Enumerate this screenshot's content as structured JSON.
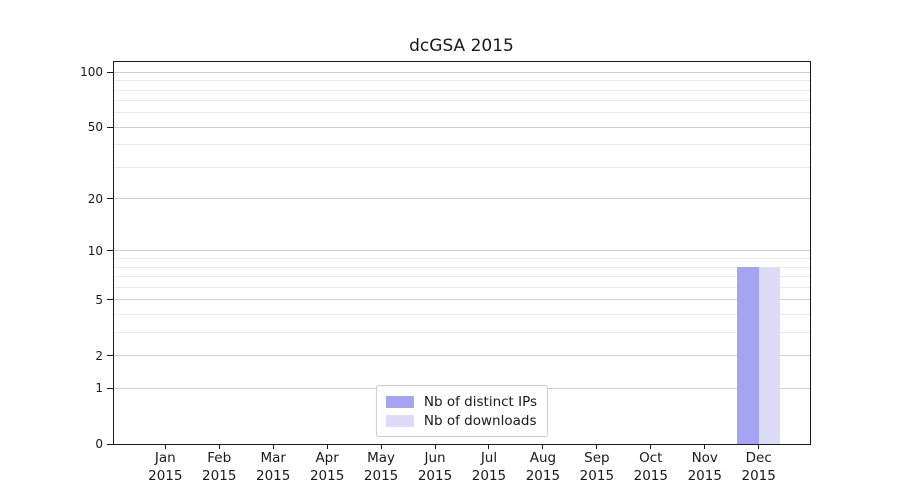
{
  "chart_data": {
    "type": "bar",
    "title": "dcGSA 2015",
    "categories": [
      "Jan",
      "Feb",
      "Mar",
      "Apr",
      "May",
      "Jun",
      "Jul",
      "Aug",
      "Sep",
      "Oct",
      "Nov",
      "Dec"
    ],
    "category_year": "2015",
    "series": [
      {
        "name": "Nb of distinct IPs",
        "color": "#a4a4f2",
        "values": [
          0,
          0,
          0,
          0,
          0,
          0,
          0,
          0,
          0,
          0,
          0,
          8
        ]
      },
      {
        "name": "Nb of downloads",
        "color": "#dcdcf8",
        "values": [
          0,
          0,
          0,
          0,
          0,
          0,
          0,
          0,
          0,
          0,
          0,
          8
        ]
      }
    ],
    "xlabel": "",
    "ylabel": "",
    "y_axis": {
      "scale": "log1p",
      "major_ticks": [
        0,
        1,
        2,
        5,
        10,
        20,
        50,
        100
      ],
      "minor_ticks": [
        3,
        4,
        6,
        7,
        8,
        9,
        30,
        40,
        60,
        70,
        80,
        90
      ],
      "max_value": 113.7
    },
    "ylim": [
      0,
      113.7
    ],
    "grid": {
      "major_color": "#cfcfcf",
      "minor_color": "#eaeaea"
    },
    "legend": {
      "position": "lower center"
    }
  }
}
